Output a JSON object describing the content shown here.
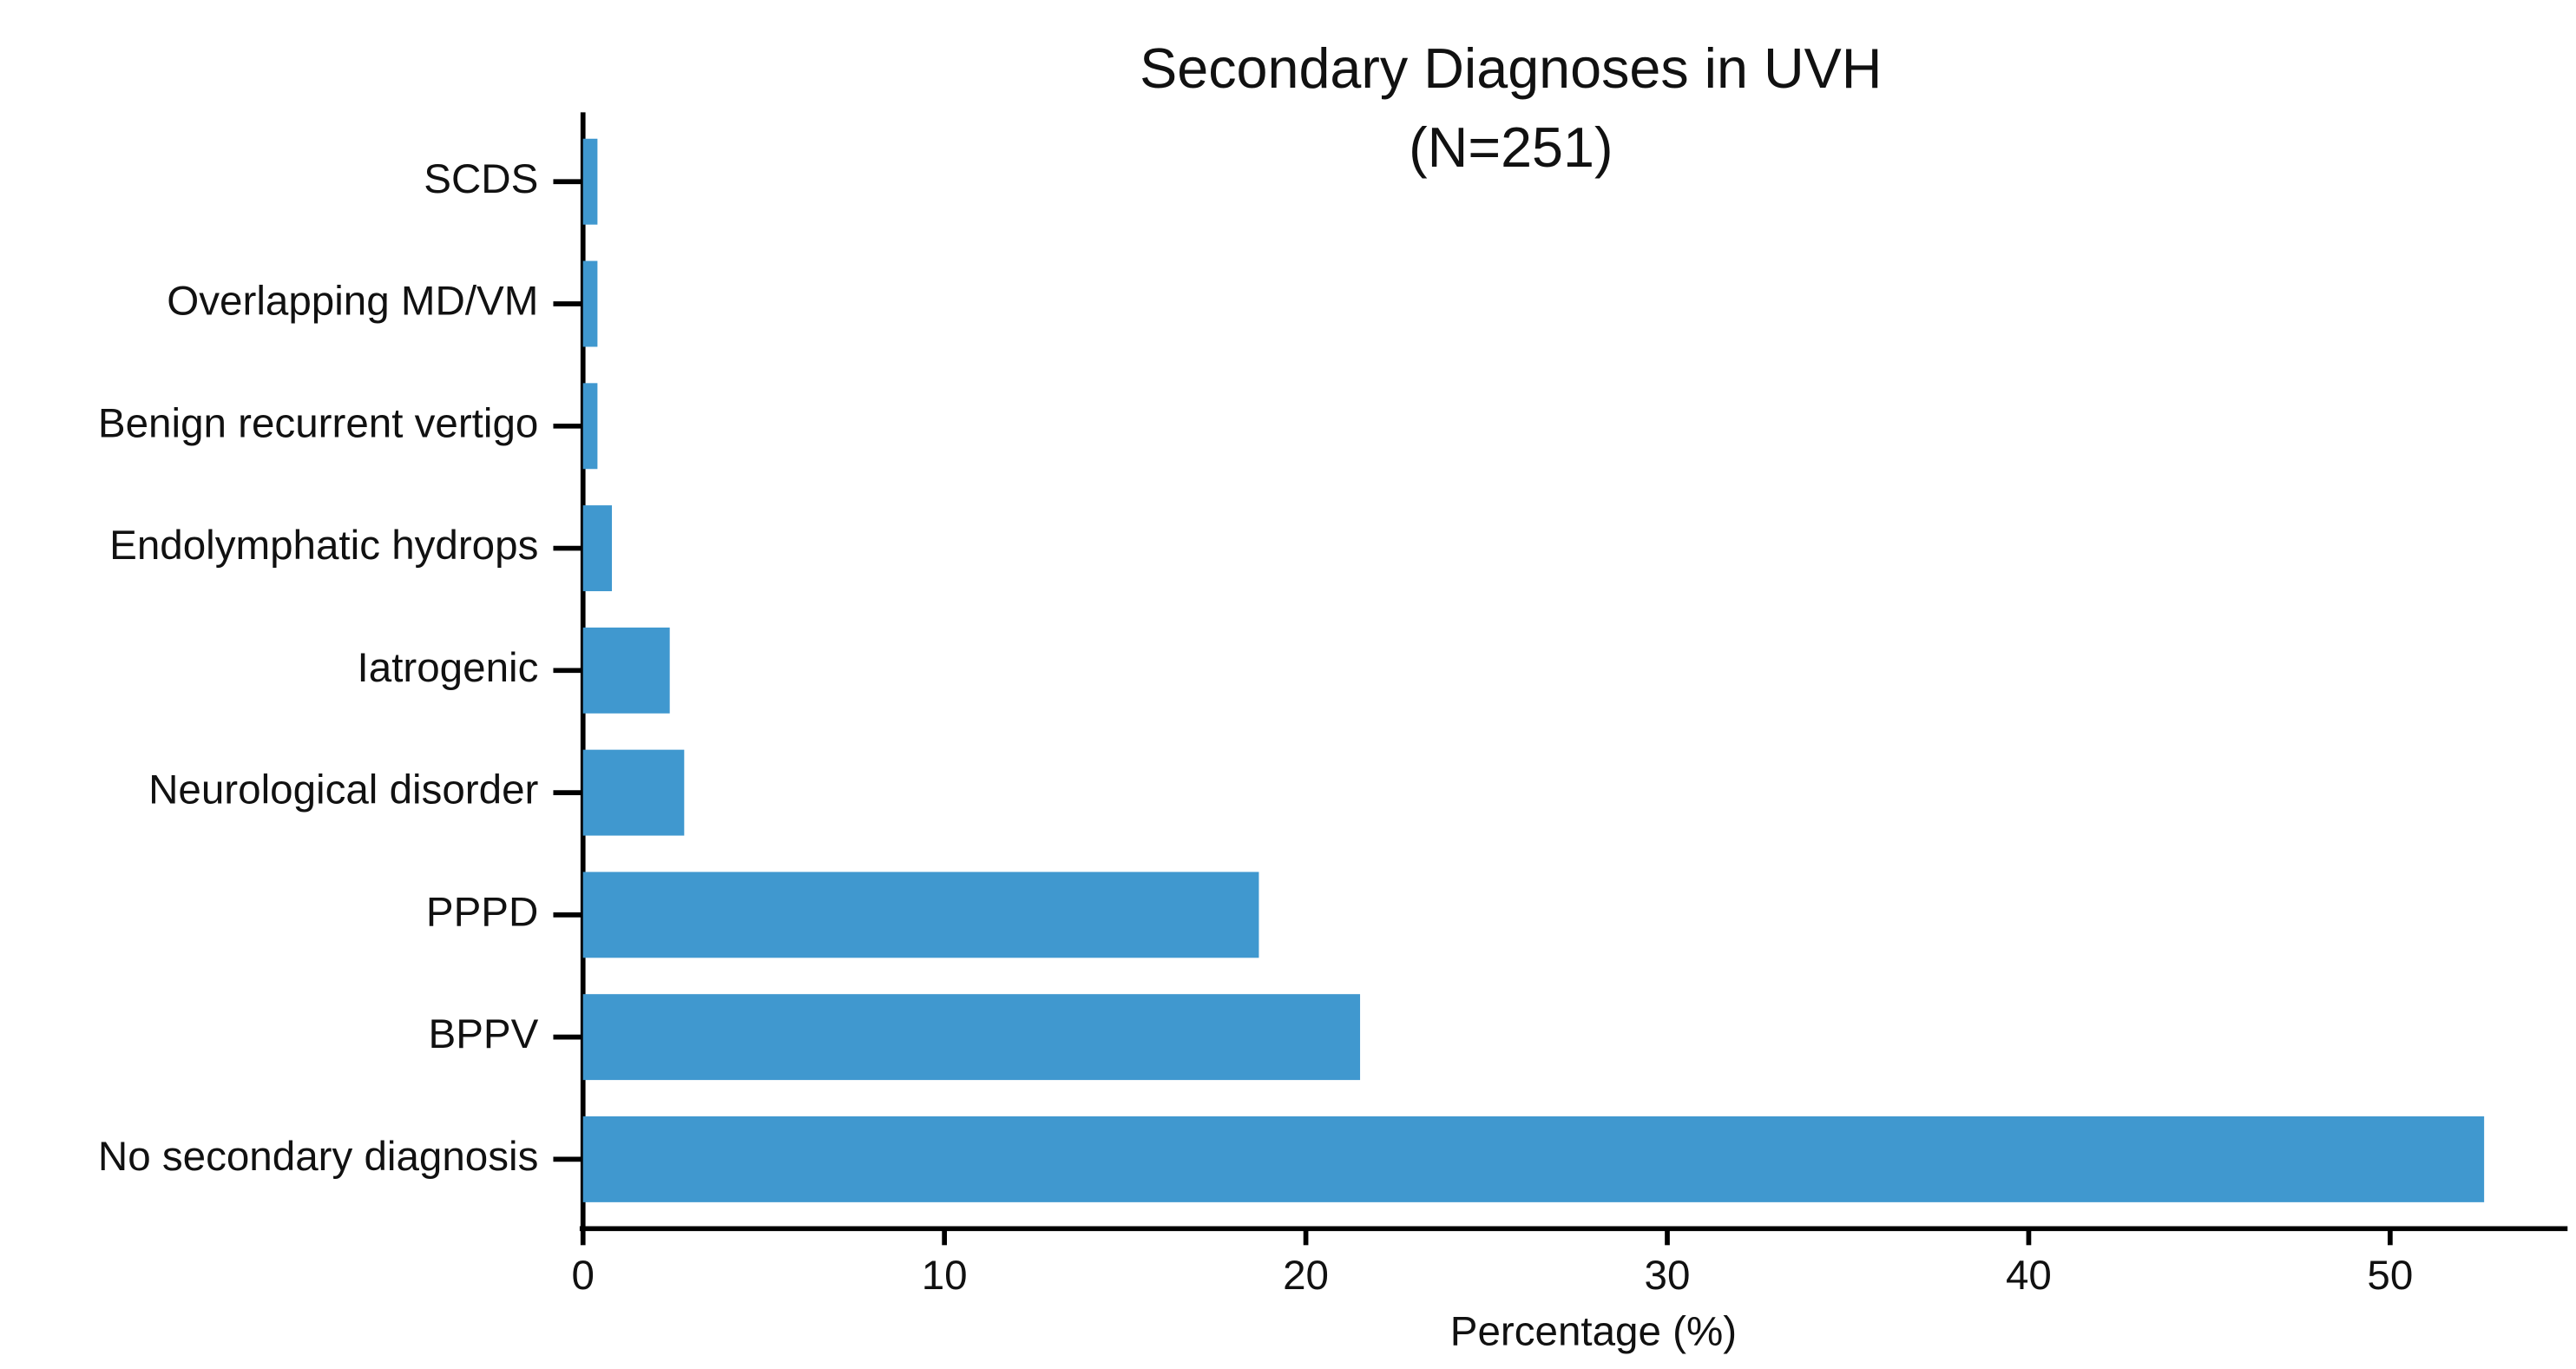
{
  "chart_data": {
    "type": "bar",
    "orientation": "horizontal",
    "title": "Secondary Diagnoses in UVH",
    "subtitle": "(N=251)",
    "x_label": "Percentage (%)",
    "categories": [
      "SCDS",
      "Overlapping MD/VM",
      "Benign recurrent vertigo",
      "Endolymphatic hydrops",
      "Iatrogenic",
      "Neurological disorder",
      "PPPD",
      "BPPV",
      "No secondary diagnosis"
    ],
    "values": [
      0.4,
      0.4,
      0.4,
      0.8,
      2.4,
      2.8,
      18.7,
      21.5,
      52.6
    ],
    "color": "#4098cf",
    "xlim": [
      0,
      55
    ],
    "xticks": [
      0,
      10,
      20,
      30,
      40,
      50
    ],
    "grid": false
  }
}
